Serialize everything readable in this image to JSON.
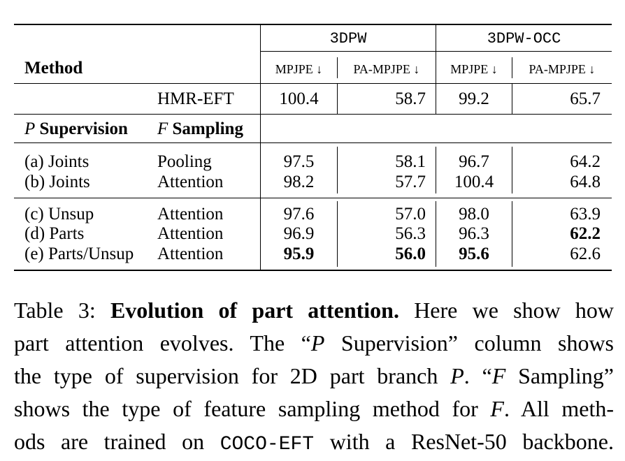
{
  "table": {
    "header": {
      "method": "Method",
      "group_3dpw": "3DPW",
      "group_3dpw_occ": "3DPW-OCC",
      "sub_cols": [
        "MPJPE ↓",
        "PA-MPJPE ↓",
        "MPJPE ↓",
        "PA-MPJPE ↓"
      ]
    },
    "baseline": {
      "name": "HMR-EFT",
      "values": [
        "100.4",
        "58.7",
        "99.2",
        "65.7"
      ]
    },
    "section_header": {
      "p_symbol": "P",
      "p_label": " Supervision",
      "f_symbol": "F",
      "f_label": " Sampling"
    },
    "rows_group1": [
      {
        "supervision": "(a) Joints",
        "sampling": "Pooling",
        "values": [
          "97.5",
          "58.1",
          "96.7",
          "64.2"
        ]
      },
      {
        "supervision": "(b) Joints",
        "sampling": "Attention",
        "values": [
          "98.2",
          "57.7",
          "100.4",
          "64.8"
        ]
      }
    ],
    "rows_group2": [
      {
        "supervision": "(c) Unsup",
        "sampling": "Attention",
        "values": [
          "97.6",
          "57.0",
          "98.0",
          "63.9"
        ]
      },
      {
        "supervision": "(d) Parts",
        "sampling": "Attention",
        "values": [
          "96.9",
          "56.3",
          "96.3",
          "62.2"
        ]
      },
      {
        "supervision": "(e) Parts/Unsup",
        "sampling": "Attention",
        "values": [
          "95.9",
          "56.0",
          "95.6",
          "62.6"
        ]
      }
    ]
  },
  "caption": {
    "line1_a": "Table 3: ",
    "line1_bold": "Evolution of part attention.",
    "line1_b": " Here we show how",
    "line2_a": "part attention evolves. The “",
    "line2_p": "P",
    "line2_b": " Supervision” column shows",
    "line3_a": "the type of supervision for 2D part branch ",
    "line3_p": "P",
    "line3_b": ". “",
    "line3_f": "F",
    "line3_c": " Sampling”",
    "line4_a": "shows the type of feature sampling method for ",
    "line4_f": "F",
    "line4_b": ". All meth-",
    "line5_a": "ods are trained on ",
    "line5_mono": "COCO-EFT",
    "line5_b": " with a ResNet-50 backbone."
  }
}
